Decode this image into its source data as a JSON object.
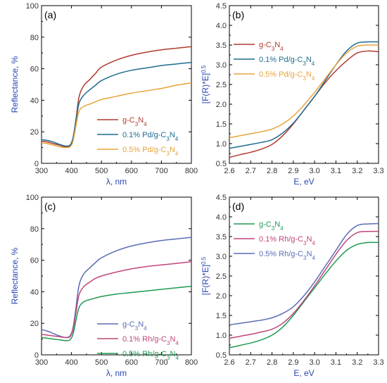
{
  "chart_data": [
    {
      "type": "line",
      "panel_label": "(a)",
      "xlabel": "λ, nm",
      "ylabel": "Reflectance, %",
      "xlim": [
        300,
        800
      ],
      "ylim": [
        0,
        100
      ],
      "xticks": [
        300,
        400,
        500,
        600,
        700,
        800
      ],
      "yticks": [
        0,
        20,
        40,
        60,
        80,
        100
      ],
      "grid": false,
      "legend_position": "bottom-right",
      "series": [
        {
          "name": "g-C3N4",
          "color": "#b03a2e",
          "x": [
            300,
            320,
            340,
            360,
            380,
            395,
            405,
            415,
            425,
            440,
            460,
            480,
            500,
            550,
            600,
            650,
            700,
            750,
            800
          ],
          "y": [
            14,
            13.5,
            12.5,
            11.5,
            10.5,
            11,
            16,
            28,
            42,
            49,
            53,
            57,
            61,
            65.5,
            68.5,
            70.5,
            72,
            73,
            74
          ]
        },
        {
          "name": "0.1% Pd/g-C3N4",
          "color": "#1f6c8f",
          "x": [
            300,
            320,
            340,
            360,
            380,
            395,
            405,
            415,
            425,
            440,
            460,
            480,
            500,
            550,
            600,
            650,
            700,
            750,
            800
          ],
          "y": [
            15,
            14.5,
            13.5,
            12,
            11,
            11.5,
            16,
            27,
            38,
            43,
            46.5,
            49.5,
            52.5,
            56.5,
            59,
            60.5,
            62,
            63,
            64
          ]
        },
        {
          "name": "0.5% Pd/g-C3N4",
          "color": "#e8a33c",
          "x": [
            300,
            320,
            340,
            360,
            380,
            395,
            405,
            415,
            425,
            440,
            460,
            480,
            500,
            550,
            600,
            650,
            700,
            750,
            800
          ],
          "y": [
            13,
            12.5,
            11.5,
            10.5,
            10,
            10.5,
            14,
            24,
            33,
            36,
            37.5,
            39,
            40.5,
            42.5,
            44.5,
            46,
            47.5,
            49.5,
            51
          ]
        }
      ]
    },
    {
      "type": "line",
      "panel_label": "(b)",
      "xlabel": "E, eV",
      "ylabel": "[F(R)*E]",
      "ylabel_sup": "0.5",
      "xlim": [
        2.6,
        3.3
      ],
      "ylim": [
        0.5,
        4.5
      ],
      "xticks": [
        2.6,
        2.7,
        2.8,
        2.9,
        3.0,
        3.1,
        3.2,
        3.3
      ],
      "yticks": [
        0.5,
        1.0,
        1.5,
        2.0,
        2.5,
        3.0,
        3.5,
        4.0,
        4.5
      ],
      "grid": false,
      "legend_position": "top-left",
      "series": [
        {
          "name": "g-C3N4",
          "color": "#b03a2e",
          "x": [
            2.6,
            2.65,
            2.7,
            2.75,
            2.8,
            2.85,
            2.9,
            2.95,
            3.0,
            3.05,
            3.1,
            3.15,
            3.2,
            3.25,
            3.3
          ],
          "y": [
            0.65,
            0.72,
            0.78,
            0.86,
            0.98,
            1.2,
            1.5,
            1.85,
            2.2,
            2.55,
            2.85,
            3.1,
            3.3,
            3.35,
            3.33
          ]
        },
        {
          "name": "0.1% Pd/g-C3N4",
          "color": "#1f6c8f",
          "x": [
            2.6,
            2.65,
            2.7,
            2.75,
            2.8,
            2.85,
            2.9,
            2.95,
            3.0,
            3.05,
            3.1,
            3.15,
            3.2,
            3.25,
            3.3
          ],
          "y": [
            0.88,
            0.93,
            0.98,
            1.03,
            1.1,
            1.27,
            1.52,
            1.85,
            2.2,
            2.6,
            3.0,
            3.35,
            3.55,
            3.58,
            3.58
          ]
        },
        {
          "name": "0.5% Pd/g-C3N4",
          "color": "#e8a33c",
          "x": [
            2.6,
            2.65,
            2.7,
            2.75,
            2.8,
            2.85,
            2.9,
            2.95,
            3.0,
            3.05,
            3.1,
            3.15,
            3.2,
            3.25,
            3.3
          ],
          "y": [
            1.15,
            1.2,
            1.25,
            1.3,
            1.37,
            1.5,
            1.7,
            1.98,
            2.3,
            2.65,
            3.0,
            3.3,
            3.47,
            3.5,
            3.5
          ]
        }
      ]
    },
    {
      "type": "line",
      "panel_label": "(c)",
      "xlabel": "λ, nm",
      "ylabel": "Reflectance, %",
      "xlim": [
        300,
        800
      ],
      "ylim": [
        0,
        100
      ],
      "xticks": [
        300,
        400,
        500,
        600,
        700,
        800
      ],
      "yticks": [
        0,
        20,
        40,
        60,
        80,
        100
      ],
      "grid": false,
      "legend_position": "bottom-right",
      "series": [
        {
          "name": "g-C3N4",
          "color": "#5b6db3",
          "x": [
            300,
            320,
            340,
            360,
            380,
            395,
            405,
            415,
            425,
            440,
            460,
            480,
            500,
            550,
            600,
            650,
            700,
            750,
            800
          ],
          "y": [
            16,
            15,
            13.5,
            12,
            11,
            12,
            17,
            30,
            44,
            51,
            55,
            58.5,
            61.5,
            66,
            69,
            71,
            72.5,
            73.5,
            74.5
          ]
        },
        {
          "name": "0.1% Rh/g-C3N4",
          "color": "#c0457a",
          "x": [
            300,
            320,
            340,
            360,
            380,
            395,
            405,
            415,
            425,
            440,
            460,
            480,
            500,
            550,
            600,
            650,
            700,
            750,
            800
          ],
          "y": [
            13,
            12.5,
            12,
            11.5,
            11,
            11.5,
            16,
            27,
            38,
            43,
            46,
            48.5,
            50,
            52.5,
            54.5,
            56,
            57,
            58,
            59
          ]
        },
        {
          "name": "0.5% Rh/g-C3N4",
          "color": "#1e9a52",
          "x": [
            300,
            320,
            340,
            360,
            380,
            395,
            405,
            415,
            425,
            440,
            460,
            480,
            500,
            550,
            600,
            650,
            700,
            750,
            800
          ],
          "y": [
            11,
            10.5,
            10,
            9.5,
            9,
            9.5,
            13,
            22,
            30,
            33.5,
            35,
            36,
            37,
            38.5,
            39.5,
            40.5,
            41.5,
            42.5,
            43.5
          ]
        }
      ]
    },
    {
      "type": "line",
      "panel_label": "(d)",
      "xlabel": "E, eV",
      "ylabel": "[F(R)*E]",
      "ylabel_sup": "0.5",
      "xlim": [
        2.6,
        3.3
      ],
      "ylim": [
        0.5,
        4.5
      ],
      "xticks": [
        2.6,
        2.7,
        2.8,
        2.9,
        3.0,
        3.1,
        3.2,
        3.3
      ],
      "yticks": [
        0.5,
        1.0,
        1.5,
        2.0,
        2.5,
        3.0,
        3.5,
        4.0,
        4.5
      ],
      "grid": false,
      "legend_position": "top-left",
      "series": [
        {
          "name": "g-C3N4",
          "color": "#1e9a52",
          "x": [
            2.6,
            2.65,
            2.7,
            2.75,
            2.8,
            2.85,
            2.9,
            2.95,
            3.0,
            3.05,
            3.1,
            3.15,
            3.2,
            3.25,
            3.3
          ],
          "y": [
            0.68,
            0.74,
            0.8,
            0.88,
            1.0,
            1.2,
            1.5,
            1.85,
            2.2,
            2.55,
            2.88,
            3.15,
            3.3,
            3.35,
            3.35
          ]
        },
        {
          "name": "0.1% Rh/g-C3N4",
          "color": "#c0457a",
          "x": [
            2.6,
            2.65,
            2.7,
            2.75,
            2.8,
            2.85,
            2.9,
            2.95,
            3.0,
            3.05,
            3.1,
            3.15,
            3.2,
            3.25,
            3.3
          ],
          "y": [
            0.92,
            0.97,
            1.02,
            1.08,
            1.15,
            1.3,
            1.55,
            1.88,
            2.25,
            2.65,
            3.05,
            3.4,
            3.6,
            3.63,
            3.63
          ]
        },
        {
          "name": "0.5% Rh/g-C3N4",
          "color": "#5b6db3",
          "x": [
            2.6,
            2.65,
            2.7,
            2.75,
            2.8,
            2.85,
            2.9,
            2.95,
            3.0,
            3.05,
            3.1,
            3.15,
            3.2,
            3.25,
            3.3
          ],
          "y": [
            1.26,
            1.3,
            1.34,
            1.38,
            1.44,
            1.55,
            1.72,
            2.0,
            2.35,
            2.75,
            3.15,
            3.55,
            3.78,
            3.82,
            3.83
          ]
        }
      ]
    }
  ]
}
